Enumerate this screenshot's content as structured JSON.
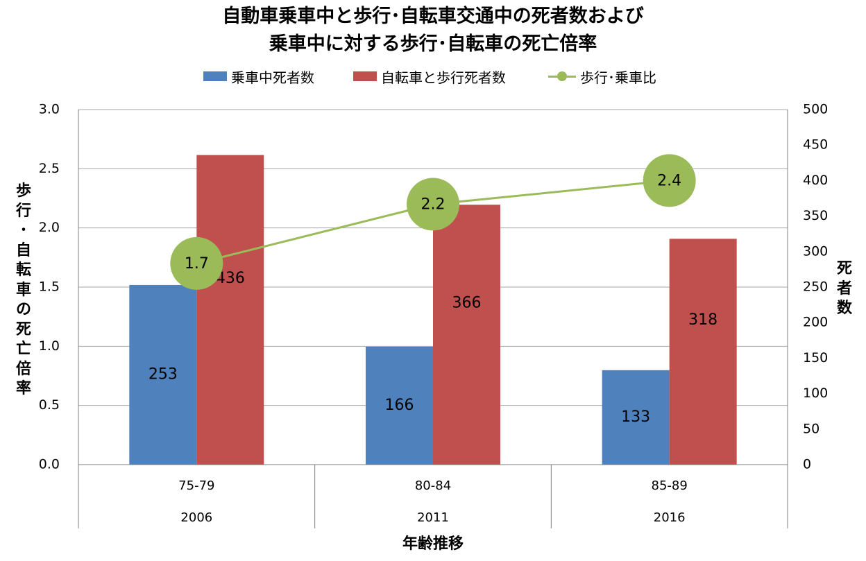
{
  "chart_data": {
    "type": "bar",
    "title": [
      "自動車乗車中と歩行･自転車交通中の死者数および",
      "乗車中に対する歩行･自転車の死亡倍率"
    ],
    "categories": [
      {
        "age": "75-79",
        "year": "2006"
      },
      {
        "age": "80-84",
        "year": "2011"
      },
      {
        "age": "85-89",
        "year": "2016"
      }
    ],
    "series": [
      {
        "name": "乗車中死者数",
        "type": "bar",
        "axis": "right",
        "color": "#4f81bd",
        "values": [
          253,
          166,
          133
        ]
      },
      {
        "name": "自転車と歩行死者数",
        "type": "bar",
        "axis": "right",
        "color": "#c0504d",
        "values": [
          436,
          366,
          318
        ]
      },
      {
        "name": "歩行･乗車比",
        "type": "line",
        "axis": "left",
        "color": "#9bbb59",
        "values": [
          1.7,
          2.2,
          2.4
        ],
        "labels": [
          "1.7",
          "2.2",
          "2.4"
        ]
      }
    ],
    "y_left": {
      "label": "歩行･自転車の死亡倍率",
      "range": [
        0,
        3.0
      ],
      "ticks": [
        "0.0",
        "0.5",
        "1.0",
        "1.5",
        "2.0",
        "2.5",
        "3.0"
      ]
    },
    "y_right": {
      "label": "死者数",
      "range": [
        0,
        500
      ],
      "ticks": [
        "0",
        "50",
        "100",
        "150",
        "200",
        "250",
        "300",
        "350",
        "400",
        "450",
        "500"
      ]
    },
    "xlabel": "年齢推移",
    "legend_position": "top",
    "grid": true
  }
}
